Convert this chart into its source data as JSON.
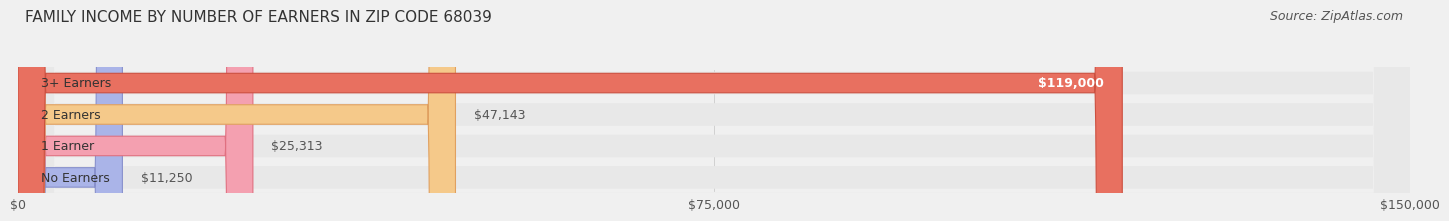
{
  "title": "FAMILY INCOME BY NUMBER OF EARNERS IN ZIP CODE 68039",
  "source": "Source: ZipAtlas.com",
  "categories": [
    "No Earners",
    "1 Earner",
    "2 Earners",
    "3+ Earners"
  ],
  "values": [
    11250,
    25313,
    47143,
    119000
  ],
  "bar_colors": [
    "#aab4e8",
    "#f4a0b0",
    "#f5c98a",
    "#e87060"
  ],
  "bar_edge_colors": [
    "#8890cc",
    "#e07080",
    "#e0a060",
    "#cc5040"
  ],
  "label_colors": [
    "#555555",
    "#555555",
    "#555555",
    "#ffffff"
  ],
  "background_color": "#f0f0f0",
  "bar_bg_color": "#e8e8e8",
  "xlim": [
    0,
    150000
  ],
  "xticks": [
    0,
    75000,
    150000
  ],
  "xticklabels": [
    "$0",
    "$75,000",
    "$150,000"
  ],
  "title_fontsize": 11,
  "source_fontsize": 9,
  "bar_label_fontsize": 9,
  "category_label_fontsize": 9,
  "tick_fontsize": 9
}
